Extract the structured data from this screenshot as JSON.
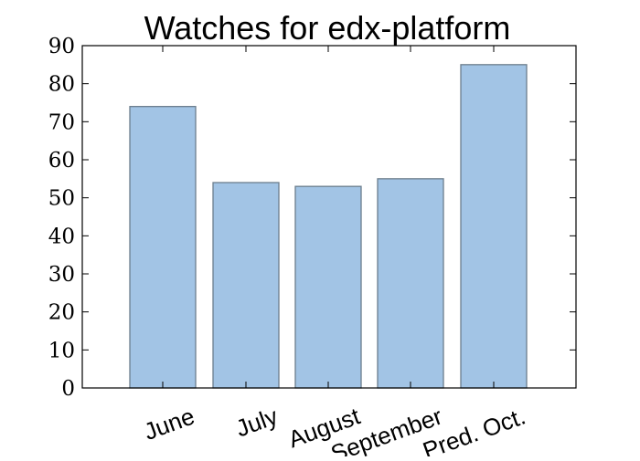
{
  "colors": {
    "bar_fill": "#a2c4e5",
    "bar_edge": "#6b7d8c",
    "axis": "#000000",
    "background": "#ffffff"
  },
  "chart_data": {
    "type": "bar",
    "title": "Watches for edx-platform",
    "xlabel": "",
    "ylabel": "",
    "categories": [
      "June",
      "July",
      "August",
      "September",
      "Pred. Oct."
    ],
    "values": [
      74,
      54,
      53,
      55,
      85
    ],
    "ylim": [
      0,
      90
    ],
    "yticks": [
      0,
      10,
      20,
      30,
      40,
      50,
      60,
      70,
      80,
      90
    ],
    "ytick_labels": [
      "0",
      "10",
      "20",
      "30",
      "40",
      "50",
      "60",
      "70",
      "80",
      "90"
    ],
    "xtick_rotation": "rotated about 20 degrees counter-clockwise",
    "grid": false,
    "legend": "none"
  }
}
